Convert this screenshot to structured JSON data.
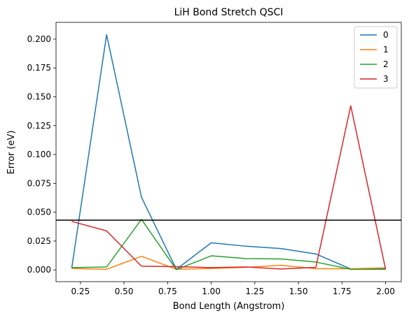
{
  "chart_data": {
    "type": "line",
    "title": "LiH Bond Stretch QSCI",
    "xlabel": "Bond Length (Angstrom)",
    "ylabel": "Error (eV)",
    "xlim": [
      0.11,
      2.09
    ],
    "ylim": [
      -0.0102,
      0.2145
    ],
    "xticks": [
      0.25,
      0.5,
      0.75,
      1.0,
      1.25,
      1.5,
      1.75,
      2.0
    ],
    "xtick_labels": [
      "0.25",
      "0.50",
      "0.75",
      "1.00",
      "1.25",
      "1.50",
      "1.75",
      "2.00"
    ],
    "yticks": [
      0.0,
      0.025,
      0.05,
      0.075,
      0.1,
      0.125,
      0.15,
      0.175,
      0.2
    ],
    "ytick_labels": [
      "0.000",
      "0.025",
      "0.050",
      "0.075",
      "0.100",
      "0.125",
      "0.150",
      "0.175",
      "0.200"
    ],
    "x": [
      0.2,
      0.4,
      0.6,
      0.8,
      1.0,
      1.2,
      1.4,
      1.6,
      1.8,
      2.0
    ],
    "series": [
      {
        "name": "0",
        "color": "#1f77b4",
        "values": [
          0.0015,
          0.2038,
          0.063,
          0.0005,
          0.0235,
          0.0205,
          0.0185,
          0.0138,
          0.0008,
          0.0012
        ]
      },
      {
        "name": "1",
        "color": "#ff7f0e",
        "values": [
          0.0012,
          0.0005,
          0.0118,
          0.0005,
          0.0012,
          0.0022,
          0.004,
          0.001,
          0.001,
          0.0018
        ]
      },
      {
        "name": "2",
        "color": "#2ca02c",
        "values": [
          0.002,
          0.0025,
          0.0438,
          0.0002,
          0.0122,
          0.0098,
          0.0095,
          0.0068,
          0.0005,
          0.0005
        ]
      },
      {
        "name": "3",
        "color": "#d62728",
        "values": [
          0.042,
          0.0338,
          0.0032,
          0.0028,
          0.002,
          0.0025,
          0.0008,
          0.0022,
          0.1422,
          0.0005
        ]
      }
    ],
    "hline": {
      "y": 0.0431,
      "color": "#000000"
    },
    "legend": {
      "position": "top-right"
    },
    "grid": false
  }
}
